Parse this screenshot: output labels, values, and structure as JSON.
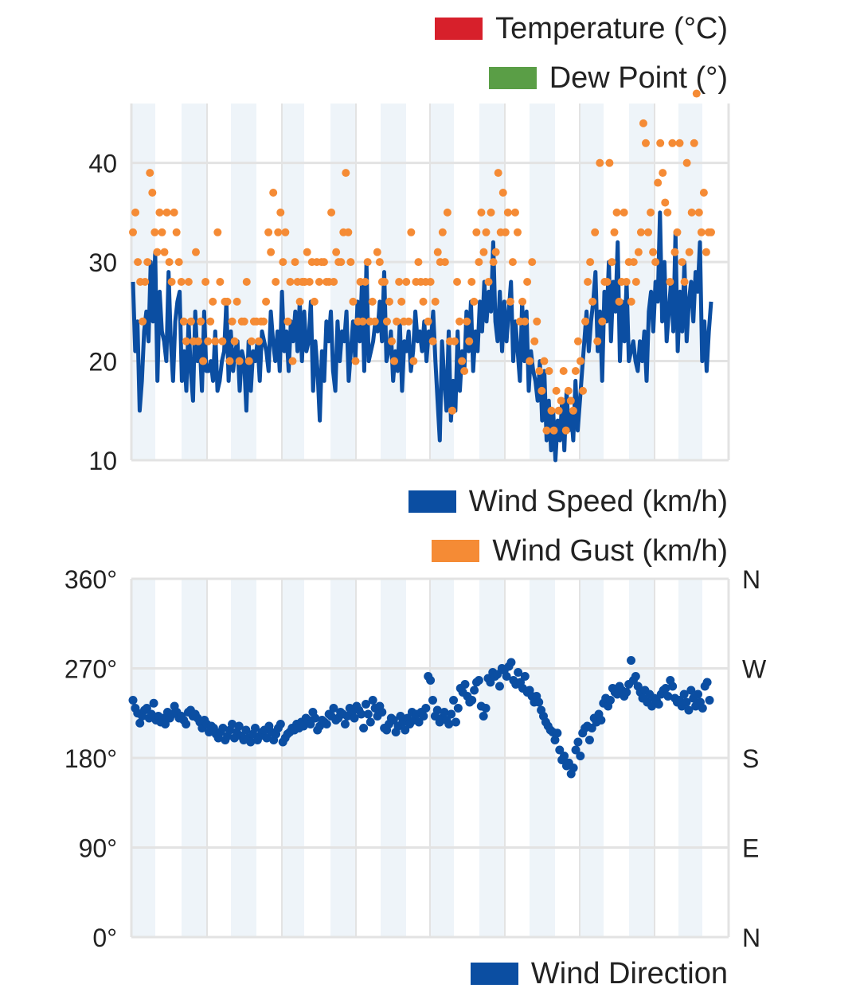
{
  "colors": {
    "temperature": "#d7202b",
    "dew_point": "#5a9e46",
    "wind_speed": "#0b4ea2",
    "wind_gust": "#f58b35",
    "wind_direction": "#0b4ea2",
    "band": "#eef4f9",
    "grid": "#e3e3e3"
  },
  "legends": {
    "temperature": "Temperature (°C)",
    "dew_point": "Dew Point (°)",
    "wind_speed": "Wind Speed (km/h)",
    "wind_gust": "Wind Gust (km/h)",
    "wind_direction": "Wind Direction"
  },
  "chart_data": [
    {
      "type": "line",
      "ylim": [
        10,
        46
      ],
      "y_ticks": [
        "10",
        "20",
        "30",
        "40"
      ],
      "y_tick_values": [
        10,
        20,
        30,
        40
      ],
      "grid": true,
      "series": [
        {
          "name": "Wind Speed (km/h)",
          "type": "line",
          "values": [
            28,
            21,
            24,
            15,
            18,
            23,
            25,
            22,
            30,
            24,
            31,
            18,
            27,
            23,
            22,
            20,
            29,
            22,
            18,
            24,
            26,
            27,
            18,
            21,
            17,
            24,
            19,
            16,
            25,
            20,
            22,
            17,
            25,
            19,
            19,
            20,
            18,
            23,
            17,
            18,
            20,
            21,
            26,
            18,
            23,
            19,
            21,
            22,
            17,
            21,
            20,
            15,
            22,
            17,
            21,
            20,
            22,
            18,
            23,
            22,
            21,
            19,
            25,
            22,
            20,
            23,
            19,
            27,
            21,
            23,
            19,
            24,
            22,
            25,
            21,
            26,
            20,
            25,
            21,
            22,
            26,
            17,
            22,
            19,
            14,
            21,
            18,
            24,
            22,
            25,
            19,
            17,
            24,
            20,
            23,
            22,
            25,
            18,
            21,
            24,
            20,
            26,
            22,
            28,
            19,
            30,
            20,
            21,
            22,
            24,
            23,
            26,
            22,
            29,
            20,
            21,
            23,
            18,
            21,
            19,
            24,
            17,
            22,
            21,
            23,
            19,
            21,
            25,
            22,
            23,
            21,
            24,
            20,
            23,
            22,
            25,
            20,
            16,
            12,
            22,
            18,
            15,
            23,
            14,
            18,
            15,
            23,
            17,
            21,
            19,
            25,
            21,
            26,
            19,
            23,
            21,
            26,
            23,
            28,
            24,
            27,
            25,
            32,
            24,
            22,
            27,
            21,
            26,
            22,
            25,
            28,
            20,
            24,
            21,
            18,
            26,
            20,
            25,
            17,
            21,
            19,
            18,
            16,
            20,
            14,
            19,
            12,
            16,
            11,
            15,
            10,
            14,
            12,
            16,
            11,
            17,
            13,
            15,
            12,
            18,
            13,
            16,
            19,
            22,
            25,
            21,
            24,
            26,
            29,
            21,
            25,
            18,
            27,
            24,
            30,
            22,
            28,
            25,
            32,
            20,
            26,
            22,
            28,
            20,
            21,
            22,
            20,
            19,
            22,
            20,
            23,
            18,
            25,
            27,
            23,
            28,
            26,
            35,
            24,
            30,
            22,
            25,
            28,
            23,
            33,
            21,
            27,
            23,
            30,
            22,
            26,
            28,
            24,
            29,
            27,
            32,
            20,
            24,
            19,
            23,
            26
          ],
          "stroke_width": 5
        },
        {
          "name": "Wind Gust (km/h)",
          "type": "scatter",
          "values": [
            33,
            35,
            30,
            28,
            24,
            28,
            30,
            39,
            37,
            33,
            31,
            35,
            33,
            31,
            35,
            30,
            28,
            35,
            33,
            30,
            28,
            24,
            22,
            28,
            24,
            22,
            31,
            22,
            24,
            20,
            28,
            22,
            24,
            26,
            22,
            33,
            28,
            22,
            26,
            26,
            20,
            24,
            22,
            26,
            20,
            24,
            24,
            28,
            20,
            22,
            24,
            24,
            22,
            24,
            24,
            26,
            33,
            31,
            37,
            28,
            33,
            35,
            30,
            33,
            24,
            28,
            20,
            30,
            28,
            26,
            28,
            28,
            31,
            28,
            30,
            26,
            30,
            28,
            30,
            30,
            28,
            28,
            35,
            28,
            31,
            30,
            30,
            33,
            39,
            33,
            30,
            26,
            20,
            24,
            28,
            24,
            28,
            30,
            24,
            26,
            24,
            31,
            30,
            28,
            28,
            24,
            26,
            22,
            20,
            24,
            28,
            26,
            24,
            28,
            24,
            33,
            20,
            28,
            30,
            28,
            26,
            28,
            24,
            28,
            22,
            26,
            31,
            30,
            33,
            30,
            35,
            22,
            15,
            22,
            28,
            24,
            20,
            19,
            24,
            22,
            28,
            26,
            33,
            30,
            35,
            31,
            33,
            28,
            35,
            30,
            31,
            39,
            33,
            37,
            33,
            35,
            26,
            30,
            35,
            33,
            24,
            26,
            24,
            28,
            20,
            30,
            22,
            24,
            19,
            17,
            20,
            13,
            19,
            15,
            13,
            17,
            15,
            16,
            19,
            13,
            17,
            16,
            15,
            19,
            22,
            20,
            17,
            24,
            28,
            30,
            26,
            33,
            22,
            40,
            24,
            28,
            28,
            40,
            30,
            33,
            35,
            26,
            28,
            35,
            28,
            30,
            26,
            30,
            28,
            31,
            33,
            44,
            42,
            33,
            35,
            31,
            30,
            38,
            42,
            39,
            36,
            35,
            28,
            42,
            31,
            33,
            42,
            30,
            28,
            40,
            31,
            35,
            42,
            47,
            35,
            33,
            37,
            31,
            33,
            33
          ]
        }
      ]
    },
    {
      "type": "scatter",
      "ylim": [
        0,
        360
      ],
      "y_ticks_left": [
        "0°",
        "90°",
        "180°",
        "270°",
        "360°"
      ],
      "y_ticks_right": [
        "N",
        "E",
        "S",
        "W",
        "N"
      ],
      "y_tick_values": [
        0,
        90,
        180,
        270,
        360
      ],
      "grid": true,
      "series": [
        {
          "name": "Wind Direction",
          "values": [
            238,
            230,
            225,
            215,
            222,
            228,
            230,
            220,
            224,
            235,
            218,
            222,
            216,
            220,
            214,
            226,
            220,
            224,
            232,
            226,
            220,
            222,
            218,
            214,
            226,
            228,
            222,
            224,
            220,
            216,
            210,
            218,
            214,
            206,
            212,
            210,
            204,
            200,
            206,
            210,
            198,
            202,
            208,
            214,
            200,
            206,
            212,
            202,
            198,
            208,
            200,
            196,
            204,
            210,
            198,
            202,
            206,
            208,
            200,
            212,
            206,
            198,
            204,
            210,
            214,
            196,
            200,
            204,
            206,
            210,
            208,
            214,
            210,
            216,
            212,
            220,
            218,
            214,
            226,
            220,
            208,
            212,
            218,
            216,
            214,
            224,
            222,
            230,
            218,
            220,
            226,
            224,
            214,
            222,
            230,
            226,
            220,
            232,
            228,
            224,
            210,
            234,
            224,
            216,
            238,
            230,
            222,
            232,
            226,
            210,
            208,
            214,
            220,
            218,
            206,
            212,
            222,
            216,
            208,
            220,
            214,
            226,
            218,
            224,
            216,
            226,
            222,
            230,
            262,
            258,
            238,
            222,
            228,
            216,
            220,
            226,
            218,
            214,
            224,
            238,
            216,
            230,
            250,
            246,
            254,
            242,
            236,
            238,
            248,
            256,
            258,
            232,
            222,
            230,
            260,
            256,
            266,
            262,
            264,
            252,
            270,
            268,
            262,
            272,
            276,
            258,
            254,
            266,
            256,
            250,
            262,
            246,
            248,
            242,
            236,
            242,
            236,
            228,
            222,
            216,
            212,
            208,
            206,
            198,
            205,
            188,
            178,
            182,
            172,
            175,
            164,
            170,
            188,
            196,
            182,
            205,
            210,
            212,
            198,
            210,
            220,
            216,
            224,
            218,
            235,
            240,
            232,
            238,
            250,
            246,
            244,
            252,
            248,
            242,
            246,
            254,
            278,
            258,
            262,
            252,
            246,
            240,
            248,
            236,
            244,
            232,
            240,
            238,
            234,
            244,
            248,
            250,
            242,
            258,
            252,
            240,
            236,
            238,
            232,
            244,
            236,
            228,
            248,
            240,
            232,
            244,
            236,
            230,
            252,
            256,
            238
          ]
        }
      ]
    }
  ]
}
